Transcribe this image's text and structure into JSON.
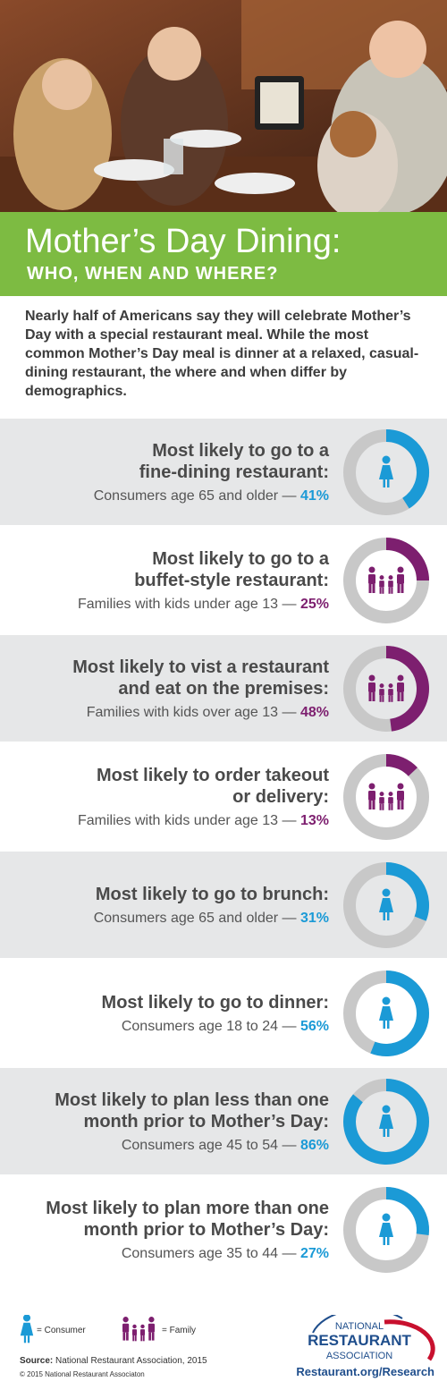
{
  "header": {
    "title": "Mother’s Day Dining:",
    "subtitle": "WHO, WHEN AND WHERE?",
    "intro": "Nearly half of Americans say they will celebrate Mother’s Day with a special restaurant meal. While the most common Mother’s Day meal is dinner at a relaxed, casual-dining restaurant, the where and when differ by demographics."
  },
  "items": [
    {
      "title_lines": [
        "Most likely to go to a",
        "fine-dining restaurant:"
      ],
      "group": "Consumers age 65 and older —",
      "value": 41,
      "value_label": "41%",
      "color": "#1b9ad6"
    },
    {
      "title_lines": [
        "Most likely to go to a",
        "buffet-style restaurant:"
      ],
      "group": "Families with kids under age 13 —",
      "value": 25,
      "value_label": "25%",
      "color": "#7d1f6f"
    },
    {
      "title_lines": [
        "Most likely to vist a restaurant",
        "and eat on the premises:"
      ],
      "group": "Families with kids over age 13 —",
      "value": 48,
      "value_label": "48%",
      "color": "#7d1f6f"
    },
    {
      "title_lines": [
        "Most likely to order takeout",
        "or delivery:"
      ],
      "group": "Families with kids under age 13 —",
      "value": 13,
      "value_label": "13%",
      "color": "#7d1f6f"
    },
    {
      "title_lines": [
        "Most likely to go to brunch:"
      ],
      "group": "Consumers age 65 and older —",
      "value": 31,
      "value_label": "31%",
      "color": "#1b9ad6"
    },
    {
      "title_lines": [
        "Most likely to go to dinner:"
      ],
      "group": "Consumers age 18 to 24 —",
      "value": 56,
      "value_label": "56%",
      "color": "#1b9ad6"
    },
    {
      "title_lines": [
        "Most likely to plan less than one",
        "month prior to Mother’s Day:"
      ],
      "group": "Consumers age 45 to 54 —",
      "value": 86,
      "value_label": "86%",
      "color": "#1b9ad6"
    },
    {
      "title_lines": [
        "Most likely to plan more than one",
        "month prior to Mother’s Day:"
      ],
      "group": "Consumers age 35 to 44 —",
      "value": 27,
      "value_label": "27%",
      "color": "#1b9ad6"
    }
  ],
  "legend": [
    {
      "label": "= Consumer",
      "color": "#1b9ad6"
    },
    {
      "label": "= Family",
      "color": "#7d1f6f"
    }
  ],
  "footer": {
    "source_label": "Source:",
    "source": "National Restaurant Association, 2015",
    "copyright": "© 2015 National Restaurant Associaton",
    "logo_lines": [
      "NATIONAL",
      "RESTAURANT",
      "ASSOCIATION"
    ],
    "link": "Restaurant.org/Research"
  }
}
